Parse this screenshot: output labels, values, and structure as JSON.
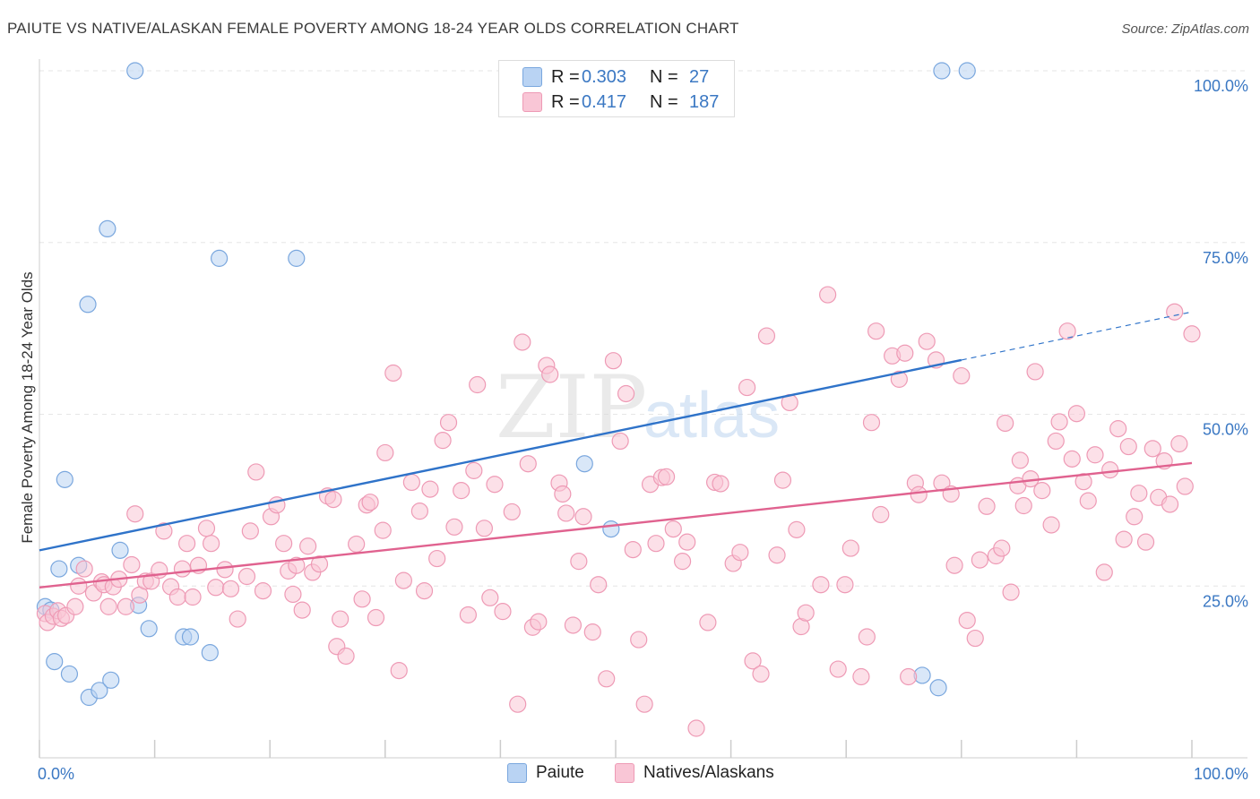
{
  "title": "PAIUTE VS NATIVE/ALASKAN FEMALE POVERTY AMONG 18-24 YEAR OLDS CORRELATION CHART",
  "source": "Source: ZipAtlas.com",
  "watermark": {
    "zip": "ZIP",
    "atlas": "atlas"
  },
  "colors": {
    "paiute_fill": "#b9d3f3",
    "paiute_stroke": "#7aa7de",
    "paiute_line": "#2f73c9",
    "native_fill": "#f9c6d6",
    "native_stroke": "#ee9ab5",
    "native_line": "#e0628f",
    "axis_text": "#3b78c3",
    "grid": "#e6e6e6"
  },
  "legend_top": {
    "paiute": {
      "r_label": "R =",
      "r_value": "0.303",
      "n_label": "N =",
      "n_value": "27"
    },
    "native": {
      "r_label": "R =",
      "r_value": "0.417",
      "n_label": "N =",
      "n_value": "187"
    }
  },
  "legend_bottom": {
    "paiute": "Paiute",
    "native": "Natives/Alaskans"
  },
  "chart_data": {
    "type": "scatter",
    "title": "PAIUTE VS NATIVE/ALASKAN FEMALE POVERTY AMONG 18-24 YEAR OLDS CORRELATION CHART",
    "xlabel": "",
    "ylabel": "Female Poverty Among 18-24 Year Olds",
    "xlim": [
      0,
      100
    ],
    "ylim": [
      0,
      102
    ],
    "x_tick_labels": [
      "0.0%",
      "100.0%"
    ],
    "y_tick_labels": [
      "25.0%",
      "50.0%",
      "75.0%",
      "100.0%"
    ],
    "y_ticks": [
      25,
      50,
      75,
      100
    ],
    "grid": true,
    "legend_position": "top-center",
    "series": [
      {
        "name": "Paiute",
        "R": 0.303,
        "N": 27,
        "trend": {
          "x0": 0,
          "y0": 30.2,
          "x1": 80,
          "y1": 57.9,
          "dash_to_x": 100,
          "dash_to_y": 64.9
        },
        "points": [
          [
            0.5,
            22
          ],
          [
            1.3,
            14
          ],
          [
            1.7,
            27.5
          ],
          [
            2.2,
            40.5
          ],
          [
            2.6,
            12.2
          ],
          [
            3.4,
            28
          ],
          [
            4.2,
            66
          ],
          [
            4.3,
            8.8
          ],
          [
            5.2,
            9.8
          ],
          [
            5.9,
            77
          ],
          [
            6.2,
            11.3
          ],
          [
            7.0,
            30.2
          ],
          [
            8.3,
            100
          ],
          [
            8.6,
            22.2
          ],
          [
            9.5,
            18.8
          ],
          [
            12.5,
            17.6
          ],
          [
            13.1,
            17.6
          ],
          [
            14.8,
            15.3
          ],
          [
            15.6,
            72.7
          ],
          [
            22.3,
            72.7
          ],
          [
            47.3,
            42.8
          ],
          [
            49.6,
            33.3
          ],
          [
            76.6,
            12
          ],
          [
            78.0,
            10.2
          ],
          [
            78.3,
            100
          ],
          [
            80.5,
            100
          ],
          [
            1.0,
            21.5
          ]
        ]
      },
      {
        "name": "Natives/Alaskans",
        "R": 0.417,
        "N": 187,
        "trend": {
          "x0": 0,
          "y0": 24.8,
          "x1": 100,
          "y1": 42.9
        },
        "points": [
          [
            0.5,
            21
          ],
          [
            0.7,
            19.7
          ],
          [
            1.2,
            20.6
          ],
          [
            1.6,
            21.4
          ],
          [
            1.9,
            20.3
          ],
          [
            2.3,
            20.7
          ],
          [
            3.1,
            22
          ],
          [
            3.4,
            25
          ],
          [
            3.9,
            27.5
          ],
          [
            4.7,
            24
          ],
          [
            5.4,
            25.6
          ],
          [
            5.6,
            25.2
          ],
          [
            6.0,
            22
          ],
          [
            6.4,
            24.9
          ],
          [
            6.9,
            26
          ],
          [
            7.5,
            22
          ],
          [
            8.0,
            28.1
          ],
          [
            8.3,
            35.5
          ],
          [
            8.7,
            23.7
          ],
          [
            9.2,
            25.7
          ],
          [
            9.7,
            25.7
          ],
          [
            10.4,
            27.3
          ],
          [
            10.8,
            33
          ],
          [
            11.4,
            24.9
          ],
          [
            12.0,
            23.4
          ],
          [
            12.4,
            27.5
          ],
          [
            12.8,
            31.2
          ],
          [
            13.3,
            23.4
          ],
          [
            13.8,
            28
          ],
          [
            14.5,
            33.4
          ],
          [
            14.9,
            31.2
          ],
          [
            15.3,
            24.8
          ],
          [
            16.1,
            27.4
          ],
          [
            16.6,
            24.6
          ],
          [
            17.2,
            20.2
          ],
          [
            18.0,
            26.4
          ],
          [
            18.3,
            33
          ],
          [
            18.8,
            41.6
          ],
          [
            19.4,
            24.3
          ],
          [
            20.1,
            35.1
          ],
          [
            20.6,
            36.8
          ],
          [
            21.2,
            31.2
          ],
          [
            21.6,
            27.2
          ],
          [
            22.0,
            23.8
          ],
          [
            22.3,
            28
          ],
          [
            22.8,
            21.5
          ],
          [
            23.3,
            30.8
          ],
          [
            23.7,
            27
          ],
          [
            24.3,
            28.2
          ],
          [
            25.0,
            38.1
          ],
          [
            25.5,
            37.6
          ],
          [
            25.8,
            16.2
          ],
          [
            26.1,
            20.2
          ],
          [
            26.6,
            14.8
          ],
          [
            27.5,
            31.1
          ],
          [
            28.0,
            23.1
          ],
          [
            28.4,
            36.8
          ],
          [
            28.7,
            37.2
          ],
          [
            29.2,
            20.4
          ],
          [
            29.8,
            33.1
          ],
          [
            30.0,
            44.4
          ],
          [
            30.7,
            56
          ],
          [
            31.2,
            12.7
          ],
          [
            31.6,
            25.8
          ],
          [
            32.3,
            40.1
          ],
          [
            33.0,
            35.9
          ],
          [
            33.4,
            24.3
          ],
          [
            33.9,
            39.1
          ],
          [
            34.5,
            29
          ],
          [
            35.0,
            46.2
          ],
          [
            35.5,
            48.8
          ],
          [
            36.0,
            33.6
          ],
          [
            36.6,
            38.9
          ],
          [
            37.2,
            20.8
          ],
          [
            37.7,
            41.8
          ],
          [
            38.0,
            54.3
          ],
          [
            38.6,
            33.4
          ],
          [
            39.1,
            23.3
          ],
          [
            39.5,
            39.8
          ],
          [
            40.2,
            21.3
          ],
          [
            41.0,
            35.8
          ],
          [
            41.5,
            7.8
          ],
          [
            41.9,
            60.5
          ],
          [
            42.4,
            42.8
          ],
          [
            42.8,
            19
          ],
          [
            43.3,
            19.8
          ],
          [
            44.0,
            57.1
          ],
          [
            44.3,
            55.8
          ],
          [
            45.1,
            40
          ],
          [
            45.4,
            38.4
          ],
          [
            45.7,
            35.6
          ],
          [
            46.3,
            19.3
          ],
          [
            46.8,
            28.6
          ],
          [
            47.2,
            35.1
          ],
          [
            48.0,
            18.3
          ],
          [
            48.5,
            25.2
          ],
          [
            49.2,
            11.5
          ],
          [
            49.8,
            57.8
          ],
          [
            50.4,
            46.1
          ],
          [
            50.9,
            53
          ],
          [
            51.5,
            30.3
          ],
          [
            52.0,
            17.2
          ],
          [
            52.5,
            7.8
          ],
          [
            53.0,
            39.8
          ],
          [
            53.5,
            31.2
          ],
          [
            54.0,
            40.8
          ],
          [
            54.4,
            40.9
          ],
          [
            55.0,
            33.3
          ],
          [
            55.8,
            28.6
          ],
          [
            56.2,
            31.4
          ],
          [
            57.0,
            4.3
          ],
          [
            58.0,
            19.7
          ],
          [
            58.6,
            40.1
          ],
          [
            59.1,
            39.9
          ],
          [
            60.2,
            28.3
          ],
          [
            60.8,
            29.9
          ],
          [
            61.4,
            53.9
          ],
          [
            61.9,
            14.1
          ],
          [
            62.6,
            12.2
          ],
          [
            63.1,
            61.4
          ],
          [
            64.0,
            29.5
          ],
          [
            64.5,
            40.4
          ],
          [
            65.1,
            51.7
          ],
          [
            65.7,
            33.2
          ],
          [
            66.1,
            19.1
          ],
          [
            66.5,
            21.1
          ],
          [
            67.8,
            25.2
          ],
          [
            68.4,
            67.4
          ],
          [
            69.3,
            12.9
          ],
          [
            69.9,
            25.2
          ],
          [
            70.4,
            30.5
          ],
          [
            71.3,
            11.8
          ],
          [
            71.8,
            17.6
          ],
          [
            72.2,
            48.8
          ],
          [
            72.6,
            62.1
          ],
          [
            73.0,
            35.4
          ],
          [
            74.0,
            58.5
          ],
          [
            74.6,
            55.1
          ],
          [
            75.1,
            58.9
          ],
          [
            75.4,
            11.8
          ],
          [
            76.0,
            40
          ],
          [
            76.3,
            38.3
          ],
          [
            77.0,
            60.6
          ],
          [
            77.8,
            57.9
          ],
          [
            78.3,
            40
          ],
          [
            79.1,
            38.4
          ],
          [
            79.4,
            28
          ],
          [
            80.0,
            55.6
          ],
          [
            80.5,
            20
          ],
          [
            81.2,
            17.4
          ],
          [
            81.6,
            28.8
          ],
          [
            82.2,
            36.6
          ],
          [
            83.0,
            29.4
          ],
          [
            83.5,
            30.5
          ],
          [
            83.8,
            48.7
          ],
          [
            84.3,
            24.1
          ],
          [
            84.9,
            39.6
          ],
          [
            85.1,
            43.3
          ],
          [
            85.4,
            36.7
          ],
          [
            86.0,
            40.6
          ],
          [
            86.4,
            56.2
          ],
          [
            87.0,
            38.9
          ],
          [
            87.8,
            33.9
          ],
          [
            88.2,
            46.1
          ],
          [
            88.5,
            48.9
          ],
          [
            89.2,
            62.1
          ],
          [
            89.6,
            43.5
          ],
          [
            90.0,
            50.1
          ],
          [
            90.6,
            40.2
          ],
          [
            91.0,
            37.4
          ],
          [
            91.6,
            44.1
          ],
          [
            92.4,
            27
          ],
          [
            92.9,
            41.9
          ],
          [
            93.6,
            47.9
          ],
          [
            94.1,
            31.8
          ],
          [
            94.5,
            45.3
          ],
          [
            95.0,
            35.1
          ],
          [
            95.4,
            38.5
          ],
          [
            96.0,
            31.4
          ],
          [
            96.6,
            45
          ],
          [
            97.1,
            37.9
          ],
          [
            97.6,
            43.2
          ],
          [
            98.1,
            36.9
          ],
          [
            98.5,
            64.9
          ],
          [
            98.9,
            45.7
          ],
          [
            99.4,
            39.5
          ],
          [
            100.0,
            61.7
          ]
        ]
      }
    ]
  }
}
